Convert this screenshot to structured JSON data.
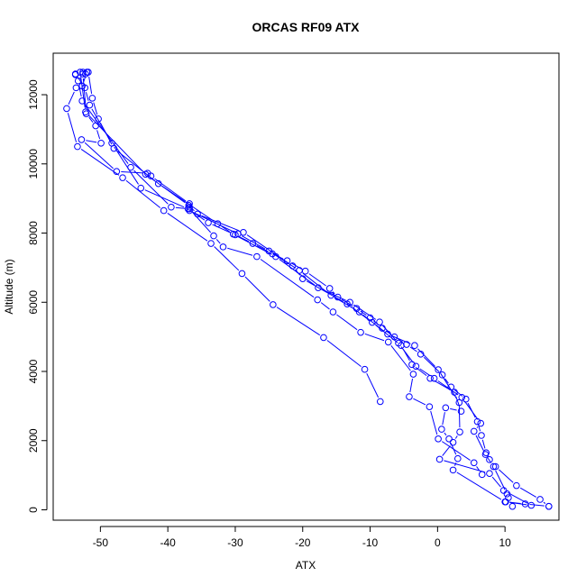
{
  "chart_data": {
    "type": "line",
    "title": "ORCAS RF09 ATX",
    "xlabel": "ATX",
    "ylabel": "Altitude (m)",
    "xlim": [
      -57,
      18
    ],
    "ylim": [
      -300,
      13200
    ],
    "x_ticks": [
      -50,
      -40,
      -30,
      -20,
      -10,
      0,
      10
    ],
    "y_ticks": [
      0,
      2000,
      4000,
      6000,
      8000,
      10000,
      12000
    ],
    "grid": false,
    "legend": "none",
    "markers": "open-circle",
    "series": [
      {
        "color": "#0000ff",
        "points": [
          [
            16.5,
            100
          ],
          [
            15.2,
            300
          ],
          [
            11.7,
            700
          ],
          [
            8.6,
            1250
          ],
          [
            7.7,
            1450
          ],
          [
            7.2,
            1650
          ],
          [
            6.5,
            2150
          ],
          [
            5.9,
            2550
          ],
          [
            4.2,
            3200
          ],
          [
            2.0,
            3550
          ],
          [
            0.7,
            3900
          ],
          [
            -2.5,
            4500
          ],
          [
            -4.6,
            4780
          ],
          [
            -6.4,
            5000
          ],
          [
            -8.2,
            5250
          ],
          [
            -10.0,
            5550
          ],
          [
            -12.0,
            5820
          ],
          [
            -14.8,
            6150
          ],
          [
            -16.0,
            6400
          ],
          [
            -19.6,
            6900
          ],
          [
            -22.3,
            7200
          ],
          [
            -24.5,
            7400
          ],
          [
            -27.4,
            7700
          ],
          [
            -30.0,
            7950
          ],
          [
            -34.0,
            8300
          ],
          [
            -37.0,
            8700
          ],
          [
            -44.0,
            9300
          ],
          [
            -48.3,
            10600
          ],
          [
            -51.6,
            11700
          ],
          [
            -52.3,
            12200
          ],
          [
            -53.7,
            12600
          ],
          [
            -52.6,
            12650
          ],
          [
            -52.2,
            12600
          ]
        ]
      },
      {
        "color": "#0000ff",
        "points": [
          [
            -52.0,
            12650
          ],
          [
            -52.7,
            12250
          ],
          [
            -53.6,
            12200
          ],
          [
            -55.0,
            11600
          ],
          [
            -53.4,
            10500
          ],
          [
            -46.7,
            9600
          ],
          [
            -40.6,
            8650
          ],
          [
            -33.6,
            7700
          ],
          [
            -29.0,
            6830
          ],
          [
            -24.4,
            5930
          ],
          [
            -16.9,
            4980
          ],
          [
            -10.8,
            4060
          ],
          [
            -8.5,
            3130
          ]
        ]
      },
      {
        "color": "#0000ff",
        "points": [
          [
            -52.6,
            12600
          ],
          [
            -52.1,
            11450
          ],
          [
            -50.7,
            11100
          ],
          [
            -49.9,
            10600
          ],
          [
            -52.8,
            10700
          ],
          [
            -47.6,
            9780
          ],
          [
            -43.0,
            9730
          ],
          [
            -42.5,
            9650
          ],
          [
            -36.8,
            8850
          ],
          [
            -36.8,
            8750
          ],
          [
            -36.8,
            8650
          ],
          [
            -29.6,
            7980
          ],
          [
            -25.0,
            7480
          ],
          [
            -20.5,
            6920
          ],
          [
            -15.8,
            6200
          ],
          [
            -11.6,
            5720
          ],
          [
            -7.4,
            5080
          ],
          [
            -3.4,
            4750
          ],
          [
            0.1,
            4050
          ],
          [
            3.2,
            3100
          ],
          [
            3.3,
            2250
          ],
          [
            2.3,
            1950
          ],
          [
            0.3,
            1460
          ],
          [
            7.7,
            1050
          ],
          [
            9.8,
            560
          ],
          [
            13.9,
            130
          ],
          [
            10.1,
            230
          ]
        ]
      },
      {
        "color": "#0000ff",
        "points": [
          [
            -53.0,
            12650
          ],
          [
            -52.2,
            11500
          ],
          [
            -43.3,
            9700
          ],
          [
            -36.9,
            8800
          ],
          [
            -35.6,
            8550
          ],
          [
            -28.8,
            8020
          ],
          [
            -21.5,
            7050
          ],
          [
            -20.0,
            6680
          ],
          [
            -13.4,
            5950
          ],
          [
            -9.7,
            5420
          ],
          [
            -5.4,
            4750
          ],
          [
            -3.8,
            4200
          ],
          [
            -1.1,
            3800
          ],
          [
            2.5,
            3400
          ],
          [
            3.5,
            2850
          ],
          [
            1.2,
            2950
          ],
          [
            0.6,
            2330
          ],
          [
            1.7,
            2050
          ],
          [
            3.0,
            1480
          ],
          [
            2.3,
            1150
          ],
          [
            10.0,
            230
          ],
          [
            13.0,
            170
          ],
          [
            16.5,
            100
          ]
        ]
      },
      {
        "color": "#0000ff",
        "points": [
          [
            -51.8,
            12650
          ],
          [
            -51.2,
            11900
          ],
          [
            -50.3,
            11300
          ],
          [
            -48.0,
            10450
          ],
          [
            -41.4,
            9430
          ],
          [
            -32.6,
            8270
          ],
          [
            -30.3,
            7970
          ],
          [
            -24.0,
            7320
          ],
          [
            -17.7,
            6420
          ],
          [
            -13.0,
            6000
          ],
          [
            -8.6,
            5430
          ],
          [
            -5.8,
            4820
          ],
          [
            -3.2,
            4150
          ],
          [
            -0.5,
            3800
          ],
          [
            3.6,
            3250
          ],
          [
            6.4,
            2500
          ],
          [
            5.4,
            2270
          ],
          [
            7.1,
            1600
          ],
          [
            8.3,
            1250
          ],
          [
            10.3,
            460
          ],
          [
            10.5,
            350
          ],
          [
            11.1,
            100
          ]
        ]
      },
      {
        "color": "#0000ff",
        "points": [
          [
            -53.7,
            12580
          ],
          [
            -53.3,
            12400
          ],
          [
            -52.7,
            11820
          ],
          [
            -45.5,
            9900
          ],
          [
            -39.5,
            8750
          ],
          [
            -36.8,
            8700
          ],
          [
            -33.2,
            7920
          ],
          [
            -31.8,
            7600
          ],
          [
            -26.8,
            7320
          ],
          [
            -17.8,
            6070
          ],
          [
            -15.5,
            5720
          ],
          [
            -11.4,
            5130
          ],
          [
            -7.3,
            4850
          ],
          [
            -3.6,
            3920
          ],
          [
            -4.2,
            3270
          ],
          [
            -1.2,
            2980
          ],
          [
            0.1,
            2050
          ],
          [
            5.4,
            1360
          ],
          [
            6.6,
            1020
          ]
        ]
      }
    ]
  }
}
